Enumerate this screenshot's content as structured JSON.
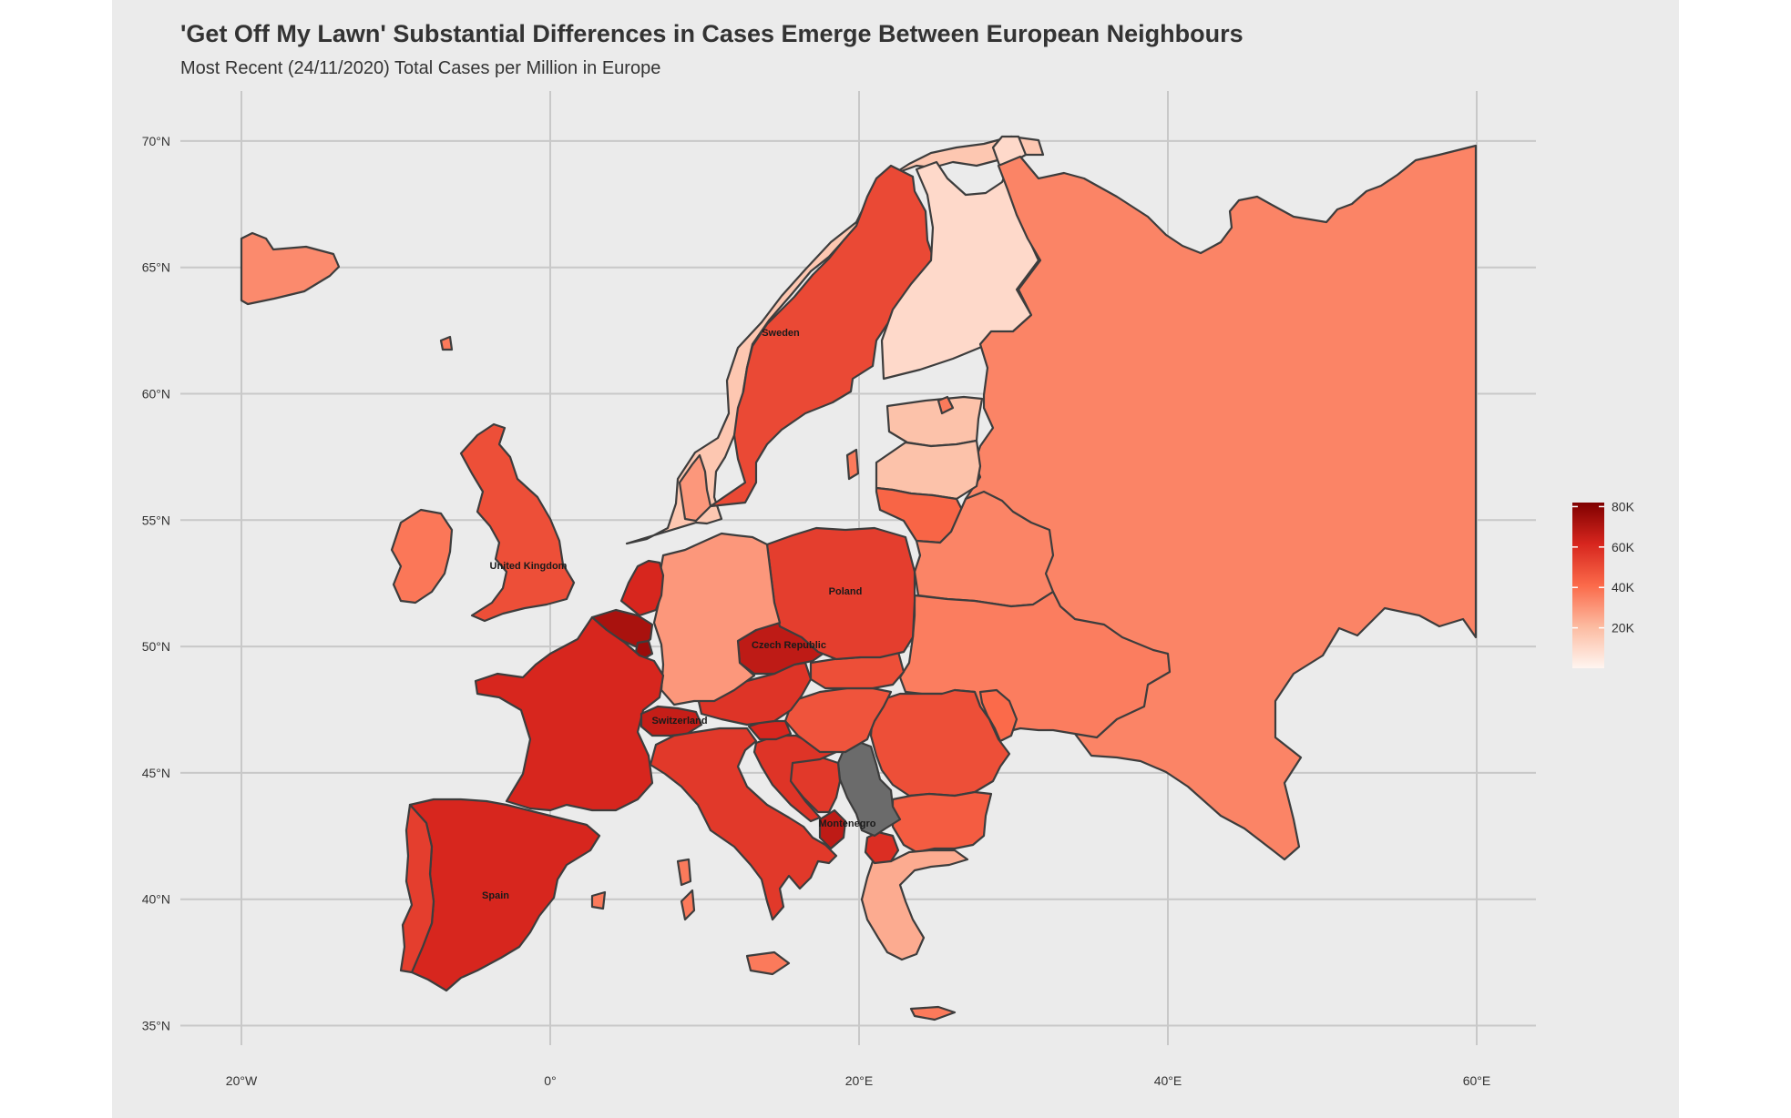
{
  "title": "'Get Off My Lawn' Substantial Differences in Cases Emerge Between European Neighbours",
  "subtitle": "Most Recent (24/11/2020) Total Cases per Million in Europe",
  "colors": {
    "panel": "#ebebeb",
    "grid": "#c8c8c8",
    "no_data": "#6b6b6b",
    "scale_low": "#fff5f0",
    "scale_high": "#7f0000"
  },
  "axes": {
    "x_ticks": [
      "20°W",
      "0°",
      "20°E",
      "40°E",
      "60°E"
    ],
    "y_ticks": [
      "70°N",
      "65°N",
      "60°N",
      "55°N",
      "50°N",
      "45°N",
      "40°N",
      "35°N"
    ],
    "x_range": [
      -24,
      63
    ],
    "y_range": [
      34,
      71
    ]
  },
  "legend": {
    "placement": "right",
    "labels": [
      "80K",
      "60K",
      "40K",
      "20K"
    ],
    "min": 0,
    "max": 82000
  },
  "country_labels": [
    "Sweden",
    "United Kingdom",
    "Poland",
    "Czech Republic",
    "Switzerland",
    "Montenegro",
    "Spain"
  ],
  "countries": [
    {
      "name": "Iceland",
      "level": 0.4
    },
    {
      "name": "Norway",
      "level": 0.2
    },
    {
      "name": "Sweden",
      "level": 0.62
    },
    {
      "name": "Finland",
      "level": 0.12
    },
    {
      "name": "Russia",
      "level": 0.42
    },
    {
      "name": "Estonia",
      "level": 0.22
    },
    {
      "name": "Latvia",
      "level": 0.22
    },
    {
      "name": "Lithuania",
      "level": 0.52
    },
    {
      "name": "Belarus",
      "level": 0.42
    },
    {
      "name": "Ukraine",
      "level": 0.44
    },
    {
      "name": "Moldova",
      "level": 0.5
    },
    {
      "name": "Romania",
      "level": 0.6
    },
    {
      "name": "Bulgaria",
      "level": 0.55
    },
    {
      "name": "Greece",
      "level": 0.3
    },
    {
      "name": "North Macedonia",
      "level": 0.72
    },
    {
      "name": "Serbia",
      "level": null
    },
    {
      "name": "Montenegro",
      "level": 0.82
    },
    {
      "name": "Bosnia and Herzegovina",
      "level": 0.68
    },
    {
      "name": "Croatia",
      "level": 0.7
    },
    {
      "name": "Slovenia",
      "level": 0.75
    },
    {
      "name": "Hungary",
      "level": 0.58
    },
    {
      "name": "Slovakia",
      "level": 0.6
    },
    {
      "name": "Austria",
      "level": 0.7
    },
    {
      "name": "Czech Republic",
      "level": 0.82
    },
    {
      "name": "Poland",
      "level": 0.66
    },
    {
      "name": "Germany",
      "level": 0.36
    },
    {
      "name": "Denmark",
      "level": 0.36
    },
    {
      "name": "Netherlands",
      "level": 0.75
    },
    {
      "name": "Belgium",
      "level": 0.88
    },
    {
      "name": "Luxembourg",
      "level": 0.92
    },
    {
      "name": "France",
      "level": 0.75
    },
    {
      "name": "Switzerland",
      "level": 0.8
    },
    {
      "name": "Italy",
      "level": 0.68
    },
    {
      "name": "Spain",
      "level": 0.75
    },
    {
      "name": "Portugal",
      "level": 0.66
    },
    {
      "name": "United Kingdom",
      "level": 0.6
    },
    {
      "name": "Ireland",
      "level": 0.46
    }
  ]
}
